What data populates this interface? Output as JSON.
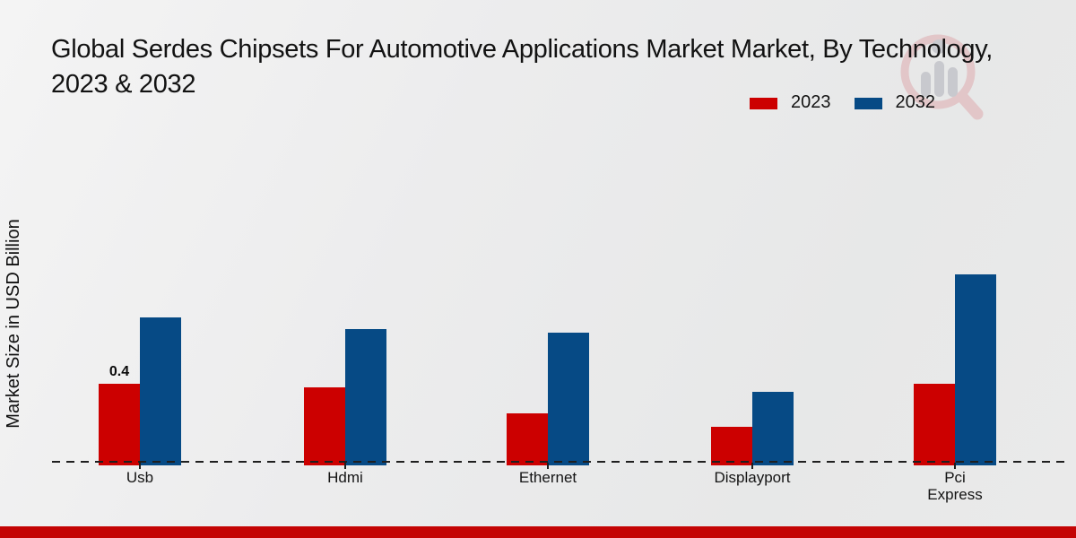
{
  "chart_data": {
    "type": "bar",
    "title": "Global Serdes Chipsets For Automotive Applications Market  Market, By Technology, 2023 & 2032",
    "xlabel": "",
    "ylabel": "Market Size in USD Billion",
    "categories": [
      "Usb",
      "Hdmi",
      "Ethernet",
      "Displayport",
      "Pci Express"
    ],
    "series": [
      {
        "name": "2023",
        "color": "#cc0000",
        "values": [
          0.4,
          0.38,
          0.25,
          0.18,
          0.4
        ]
      },
      {
        "name": "2032",
        "color": "#064a85",
        "values": [
          0.74,
          0.68,
          0.66,
          0.36,
          0.96
        ]
      }
    ],
    "annotations": [
      {
        "series": "2023",
        "category": "Usb",
        "text": "0.4"
      }
    ],
    "ylim": [
      0,
      1.0
    ],
    "grid": false,
    "legend_position": "top-right",
    "axis_line_style": "dashed-baseline-only"
  },
  "watermark": {
    "icon": "magnifier-bar-chart-logo"
  },
  "footer": {
    "accent_color": "#c40404"
  }
}
